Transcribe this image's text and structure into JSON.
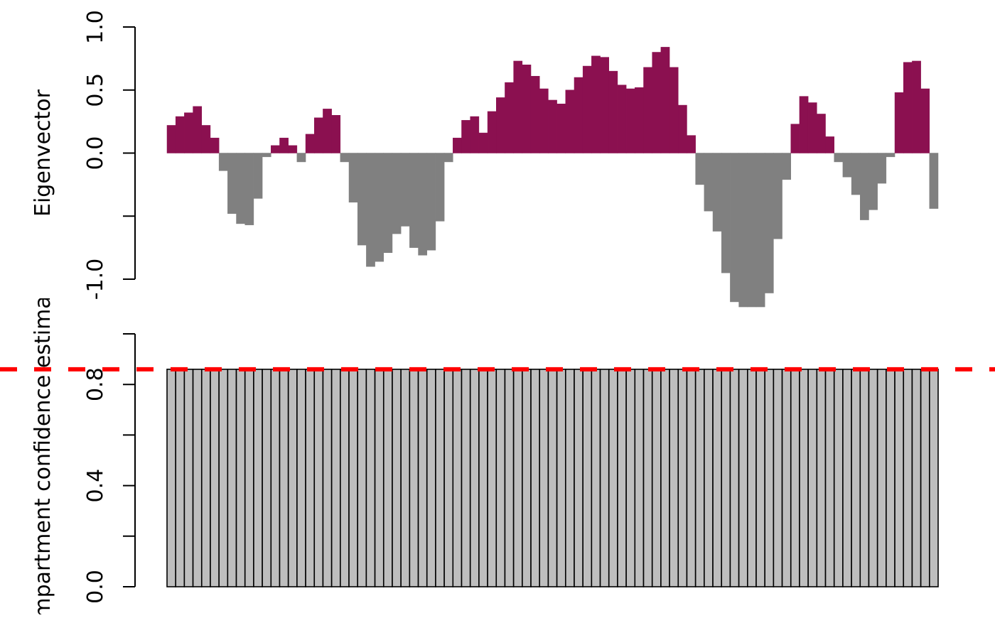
{
  "colors": {
    "positive_bar": "#8B1050",
    "negative_bar": "#808080",
    "confidence_bar": "#BEBEBE",
    "confidence_bar_outline": "#000000",
    "threshold_line": "#FF0000"
  },
  "chart_data": [
    {
      "type": "bar",
      "ylabel": "Eigenvector",
      "ylim": [
        -1.0,
        1.0
      ],
      "yticks": [
        -1.0,
        -0.5,
        0.0,
        0.5,
        1.0
      ],
      "ytick_labels": [
        "-1.0",
        "",
        "0.0",
        "0.5",
        "1.0"
      ],
      "grid": false,
      "color_rule": "positive values in positive_bar color, negative values in negative_bar color",
      "values": [
        0.22,
        0.29,
        0.32,
        0.37,
        0.22,
        0.12,
        -0.14,
        -0.48,
        -0.56,
        -0.57,
        -0.36,
        -0.03,
        0.06,
        0.12,
        0.06,
        -0.07,
        0.15,
        0.28,
        0.35,
        0.3,
        -0.07,
        -0.39,
        -0.73,
        -0.9,
        -0.86,
        -0.79,
        -0.64,
        -0.58,
        -0.75,
        -0.81,
        -0.77,
        -0.54,
        -0.07,
        0.12,
        0.26,
        0.29,
        0.16,
        0.33,
        0.44,
        0.56,
        0.73,
        0.7,
        0.61,
        0.51,
        0.42,
        0.39,
        0.5,
        0.6,
        0.69,
        0.77,
        0.76,
        0.65,
        0.54,
        0.51,
        0.52,
        0.68,
        0.8,
        0.84,
        0.68,
        0.38,
        0.14,
        -0.25,
        -0.46,
        -0.62,
        -0.95,
        -1.18,
        -1.22,
        -1.22,
        -1.22,
        -1.11,
        -0.68,
        -0.21,
        0.23,
        0.45,
        0.4,
        0.31,
        0.13,
        -0.07,
        -0.19,
        -0.33,
        -0.53,
        -0.45,
        -0.24,
        -0.03,
        0.48,
        0.72,
        0.73,
        0.51,
        -0.44
      ]
    },
    {
      "type": "bar",
      "ylabel": "Compartment confidence estimate",
      "ylim": [
        0.0,
        1.0
      ],
      "yticks": [
        0.0,
        0.2,
        0.4,
        0.6,
        0.8,
        1.0
      ],
      "ytick_labels": [
        "0.0",
        "",
        "0.4",
        "",
        "0.8",
        ""
      ],
      "grid": false,
      "bar_count": 89,
      "values": [
        0.86,
        0.86,
        0.86,
        0.86,
        0.86,
        0.86,
        0.86,
        0.86,
        0.86,
        0.86,
        0.86,
        0.86,
        0.86,
        0.86,
        0.86,
        0.86,
        0.86,
        0.86,
        0.86,
        0.86,
        0.86,
        0.86,
        0.86,
        0.86,
        0.86,
        0.86,
        0.86,
        0.86,
        0.86,
        0.86,
        0.86,
        0.86,
        0.86,
        0.86,
        0.86,
        0.86,
        0.86,
        0.86,
        0.86,
        0.86,
        0.86,
        0.86,
        0.86,
        0.86,
        0.86,
        0.86,
        0.86,
        0.86,
        0.86,
        0.86,
        0.86,
        0.86,
        0.86,
        0.86,
        0.86,
        0.86,
        0.86,
        0.86,
        0.86,
        0.86,
        0.86,
        0.86,
        0.86,
        0.86,
        0.86,
        0.86,
        0.86,
        0.86,
        0.86,
        0.86,
        0.86,
        0.86,
        0.86,
        0.86,
        0.86,
        0.86,
        0.86,
        0.86,
        0.86,
        0.86,
        0.86,
        0.86,
        0.86,
        0.86,
        0.86,
        0.86,
        0.86,
        0.86,
        0.86
      ],
      "threshold": 0.86,
      "threshold_style": "dashed"
    }
  ]
}
